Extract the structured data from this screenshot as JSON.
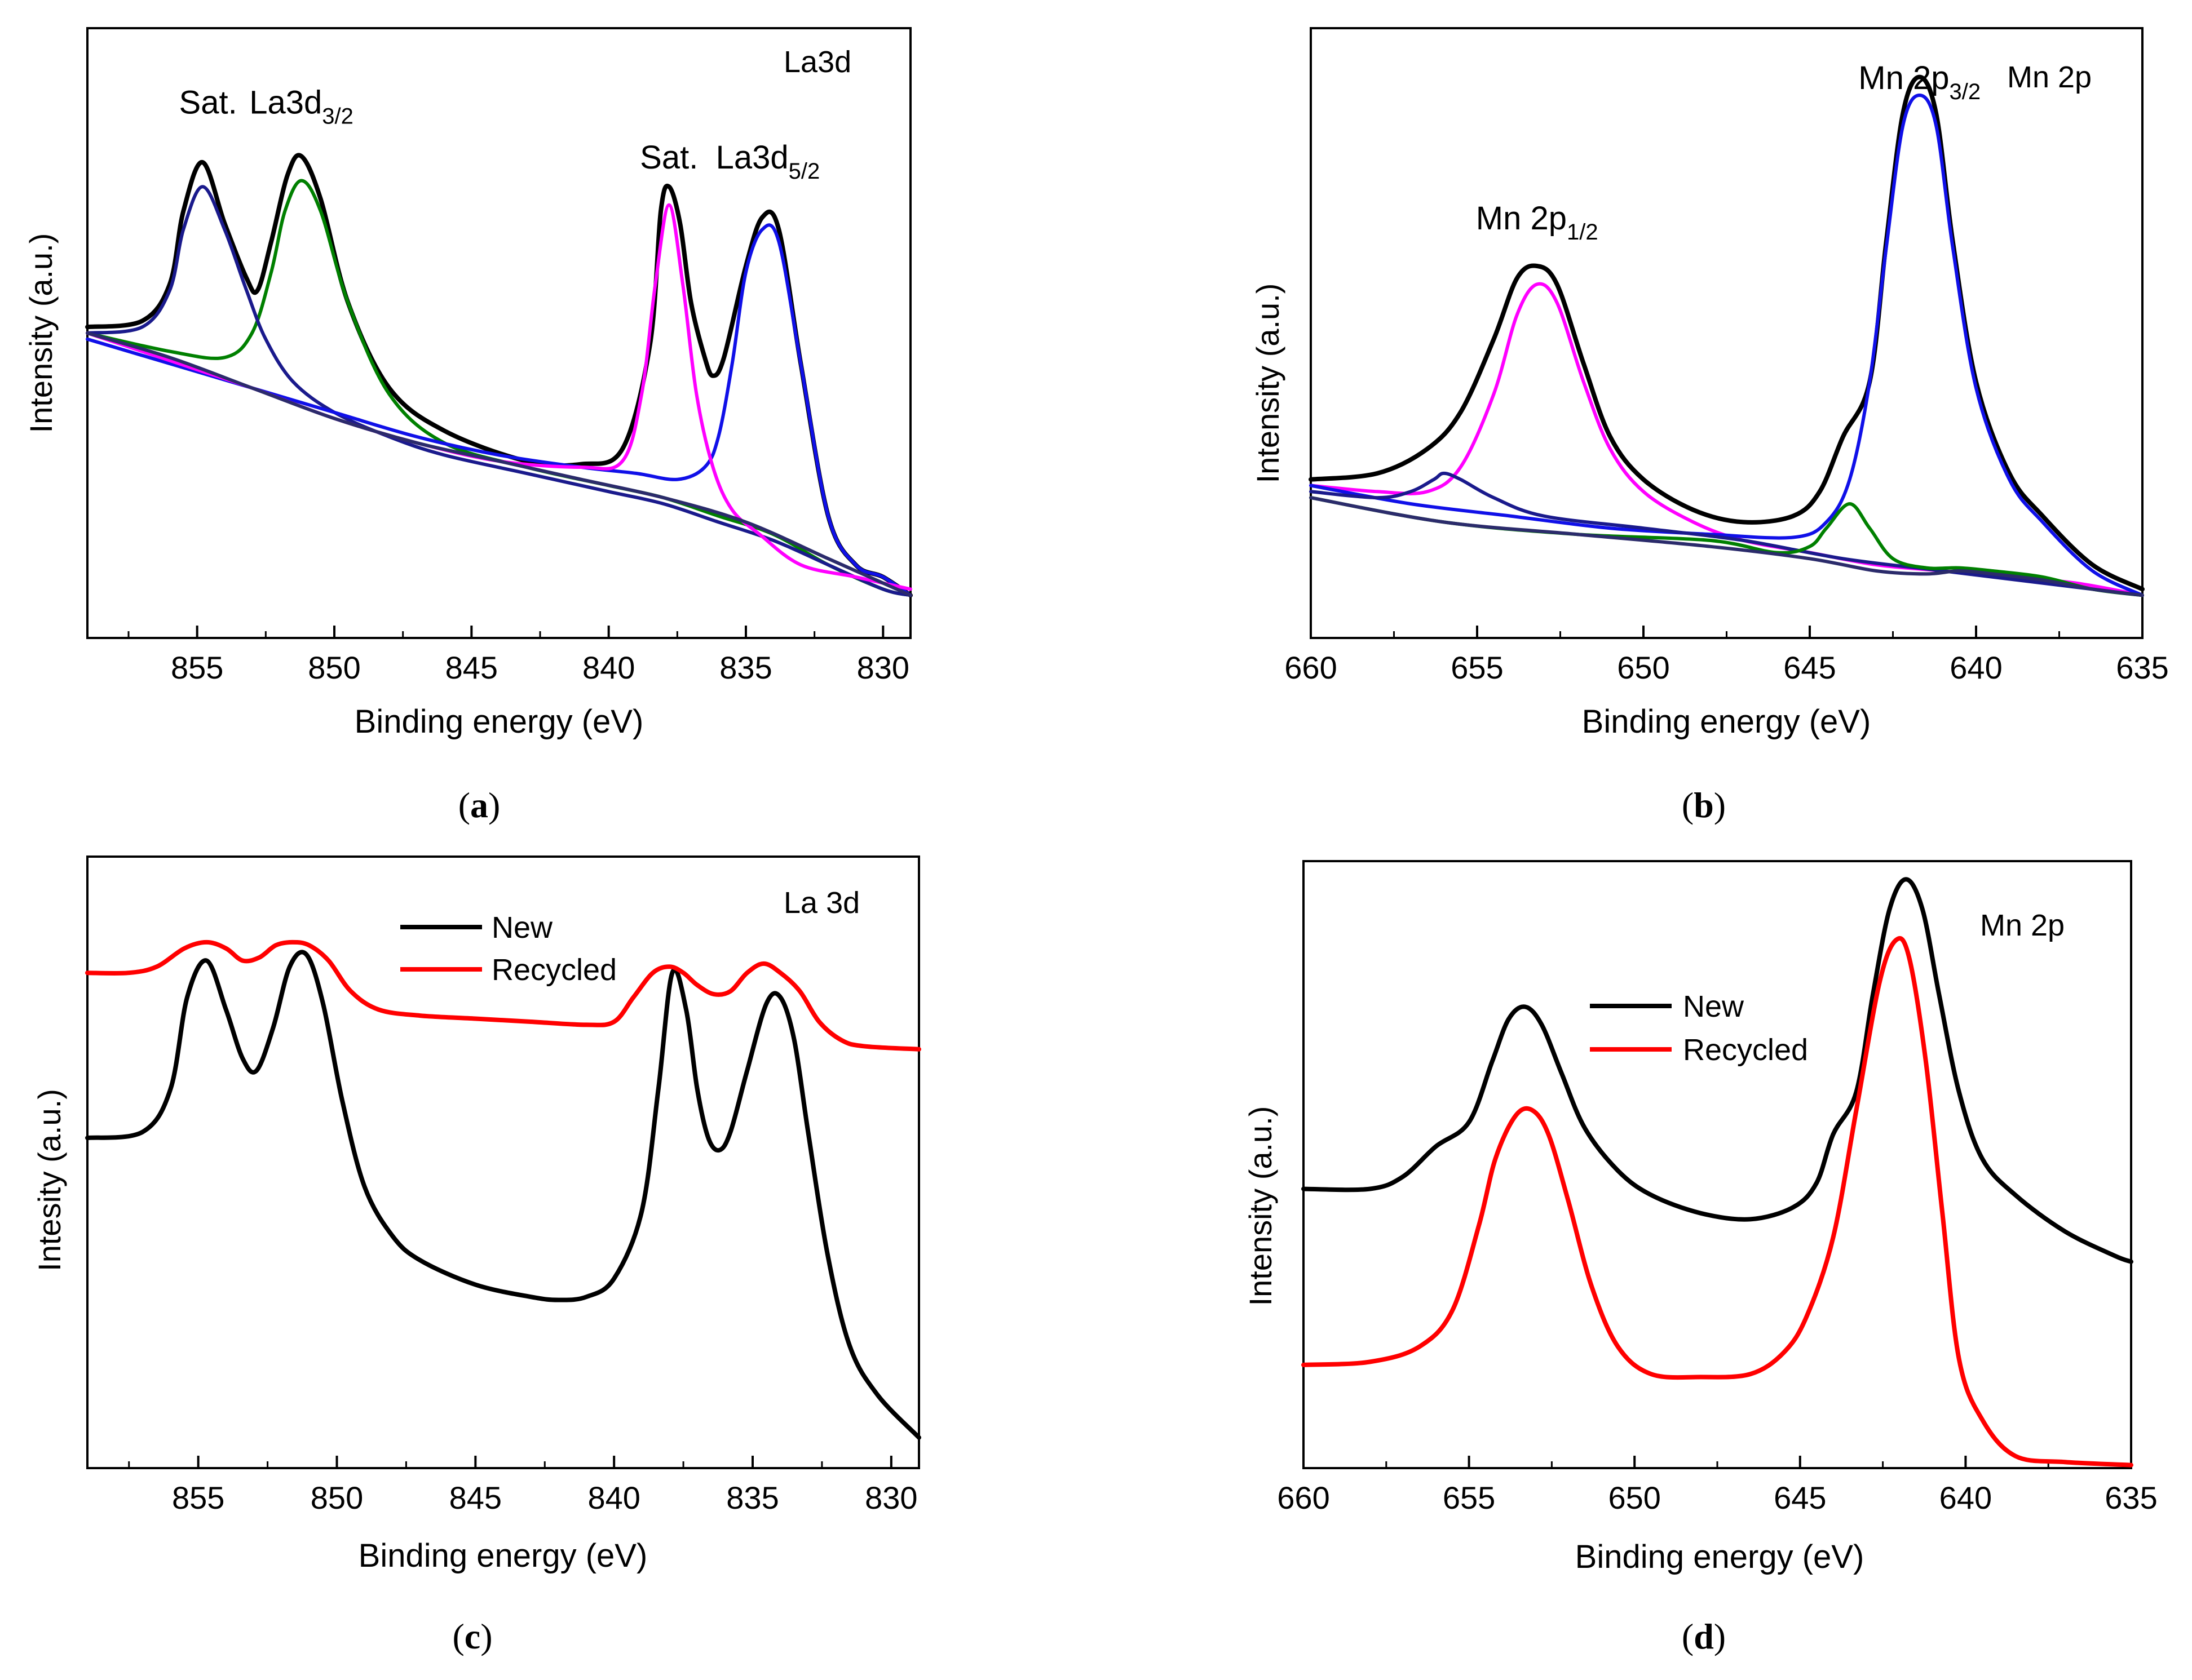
{
  "figure": {
    "panels": [
      {
        "id": "a",
        "caption_letter": "a",
        "caption_open": "(",
        "caption_close": ")"
      },
      {
        "id": "b",
        "caption_letter": "b",
        "caption_open": "(",
        "caption_close": ")"
      },
      {
        "id": "c",
        "caption_letter": "c",
        "caption_open": "(",
        "caption_close": ")"
      },
      {
        "id": "d",
        "caption_letter": "d",
        "caption_open": "(",
        "caption_close": ")"
      }
    ]
  },
  "chart_data": [
    {
      "id": "a",
      "type": "line",
      "title": "La3d",
      "xlabel": "Binding energy (eV)",
      "ylabel": "Intensity (a.u.)",
      "xlim": [
        859,
        829
      ],
      "ylim": [
        0,
        100
      ],
      "x_reversed": true,
      "y_ticks_shown": false,
      "xticks": [
        855,
        850,
        845,
        840,
        835,
        830
      ],
      "xtick_labels": [
        "855",
        "850",
        "845",
        "840",
        "835",
        "830"
      ],
      "annotations": [
        {
          "text": "Sat.",
          "x": 854.6,
          "y": 86
        },
        {
          "main": "La3d",
          "sub": "3/2",
          "x": 851.2,
          "y": 86
        },
        {
          "text": "Sat.",
          "x": 837.8,
          "y": 77
        },
        {
          "main": "La3d",
          "sub": "5/2",
          "x": 834.2,
          "y": 77
        }
      ],
      "series": [
        {
          "name": "envelope",
          "color": "#000000",
          "x": [
            859,
            857,
            856,
            855.5,
            854.8,
            854,
            853.2,
            852.8,
            852.3,
            851.7,
            851.2,
            850.5,
            849.5,
            848,
            846,
            843,
            841,
            839.5,
            838.5,
            838.1,
            837.8,
            837.4,
            837,
            836.5,
            836.2,
            835.8,
            835,
            834.4,
            833.8,
            833,
            832,
            831,
            830,
            829
          ],
          "y": [
            51,
            52,
            58,
            70,
            78,
            68,
            59,
            57,
            65,
            76,
            79,
            72,
            55,
            41,
            34,
            29,
            28.5,
            31,
            48,
            70,
            74,
            68,
            55,
            46,
            43,
            46,
            61,
            69,
            67,
            45,
            20,
            12,
            10,
            7
          ]
        },
        {
          "name": "La3d 3/2 component",
          "color": "#008000",
          "x": [
            859,
            856,
            854,
            853,
            852.3,
            851.8,
            851.2,
            850.5,
            849.5,
            848,
            846,
            843,
            840,
            838,
            836,
            834,
            832,
            830,
            829
          ],
          "y": [
            50,
            47,
            46,
            50,
            60,
            70,
            75,
            70,
            55,
            40,
            32,
            28,
            25,
            23,
            20,
            17,
            12,
            8,
            7
          ]
        },
        {
          "name": "Sat. component (854.8)",
          "color": "#1a1a8c",
          "x": [
            859,
            857,
            856,
            855.5,
            854.8,
            854,
            853.2,
            852.5,
            851.5,
            850,
            848,
            846,
            843,
            840,
            838,
            836,
            834,
            832,
            830,
            829
          ],
          "y": [
            50,
            51,
            57,
            67,
            74,
            67,
            57,
            49,
            42,
            37,
            33,
            30,
            27,
            24,
            22,
            19,
            16,
            12,
            8,
            7
          ]
        },
        {
          "name": "La3d 5/2 component",
          "color": "#1010e8",
          "x": [
            859,
            856,
            853,
            850,
            847,
            844,
            841,
            839,
            837.5,
            836.5,
            836,
            835.5,
            835,
            834.4,
            833.8,
            833,
            832,
            831,
            830,
            829
          ],
          "y": [
            49,
            45,
            41,
            37,
            33,
            30,
            28,
            27,
            26,
            28,
            33,
            45,
            60,
            67,
            65,
            45,
            20,
            12,
            10,
            7
          ]
        },
        {
          "name": "Sat. component (837.8)",
          "color": "#ff00ff",
          "x": [
            859,
            857,
            855,
            853,
            850,
            847,
            844,
            841,
            839.5,
            838.8,
            838.3,
            837.8,
            837.3,
            836.8,
            836.2,
            835.5,
            834.5,
            833,
            831,
            829
          ],
          "y": [
            50,
            47,
            44,
            41,
            36,
            32,
            29,
            28,
            29,
            40,
            58,
            71,
            58,
            40,
            28,
            21,
            17,
            12,
            10,
            8
          ]
        },
        {
          "name": "baseline",
          "color": "#2b2b6b",
          "x": [
            859,
            856,
            853,
            850,
            847,
            844,
            841,
            838,
            835,
            832,
            830,
            829
          ],
          "y": [
            50,
            46,
            41,
            36,
            32,
            29,
            26,
            23,
            19,
            13,
            9,
            7
          ]
        }
      ]
    },
    {
      "id": "b",
      "type": "line",
      "title": "Mn 2p",
      "xlabel": "Binding energy (eV)",
      "ylabel": "Intensity (a.u.)",
      "xlim": [
        660,
        635
      ],
      "ylim": [
        0,
        100
      ],
      "x_reversed": true,
      "y_ticks_shown": false,
      "xticks": [
        660,
        655,
        650,
        645,
        640,
        635
      ],
      "xtick_labels": [
        "660",
        "655",
        "650",
        "645",
        "640",
        "635"
      ],
      "annotations": [
        {
          "main": "Mn 2p",
          "sub": "1/2",
          "x": 653.2,
          "y": 67
        },
        {
          "main": "Mn 2p",
          "sub": "3/2",
          "x": 641.7,
          "y": 90
        }
      ],
      "series": [
        {
          "name": "envelope",
          "color": "#000000",
          "x": [
            660,
            658,
            656.5,
            655.5,
            654.5,
            653.8,
            653.2,
            652.6,
            651.8,
            651,
            650,
            648.5,
            647,
            645.5,
            644.7,
            644,
            643.2,
            642.7,
            642.2,
            641.7,
            641.2,
            640.7,
            640,
            639,
            638,
            636.5,
            635
          ],
          "y": [
            26,
            27,
            31,
            37,
            49,
            59,
            61,
            58,
            45,
            33,
            26,
            21,
            19,
            20,
            24,
            33,
            42,
            65,
            86,
            92,
            86,
            65,
            42,
            27,
            20,
            12,
            8
          ]
        },
        {
          "name": "Mn 2p 1/2 component",
          "color": "#ff00ff",
          "x": [
            660,
            658,
            656.5,
            655.5,
            654.5,
            653.8,
            653.2,
            652.6,
            651.8,
            651,
            650,
            648.5,
            647,
            645,
            643,
            641,
            639,
            637,
            635
          ],
          "y": [
            25,
            24,
            24,
            28,
            40,
            53,
            58,
            55,
            42,
            31,
            24,
            19,
            16,
            14,
            12,
            11,
            10,
            9,
            7
          ]
        },
        {
          "name": "Mn 2p 3/2 component",
          "color": "#1010e8",
          "x": [
            660,
            657,
            654,
            651,
            648,
            645.5,
            644.5,
            643.8,
            643.2,
            642.7,
            642.2,
            641.7,
            641.2,
            640.7,
            640,
            639,
            638,
            636.5,
            635
          ],
          "y": [
            25,
            22,
            20,
            18,
            17,
            16.5,
            19,
            26,
            42,
            64,
            84,
            89,
            84,
            64,
            41,
            26,
            19,
            11,
            7
          ]
        },
        {
          "name": "satellite component (656)",
          "color": "#1a1a8c",
          "x": [
            660,
            658,
            657,
            656.3,
            656,
            655.5,
            654.5,
            653,
            650,
            647,
            644,
            641,
            638,
            635
          ],
          "y": [
            24,
            23,
            24,
            26,
            27,
            26,
            23,
            20,
            18,
            16,
            13,
            11,
            9,
            7
          ]
        },
        {
          "name": "satellite component (643.8)",
          "color": "#008000",
          "x": [
            660,
            656,
            652,
            648,
            646,
            645,
            644.5,
            643.8,
            643.2,
            642.5,
            641.5,
            640.5,
            639.5,
            638,
            636.5,
            635
          ],
          "y": [
            23,
            19,
            17,
            16,
            14,
            15,
            18,
            22,
            18,
            13,
            11.5,
            11.5,
            11,
            10,
            8,
            7
          ]
        },
        {
          "name": "baseline",
          "color": "#2b2b6b",
          "x": [
            660,
            656,
            652,
            648,
            645,
            643,
            641.5,
            640.5,
            639.5,
            638,
            636.5,
            635
          ],
          "y": [
            23,
            19,
            17,
            15,
            13,
            11,
            10.5,
            11,
            10.5,
            9.5,
            8,
            7
          ]
        }
      ]
    },
    {
      "id": "c",
      "type": "line",
      "title": "La 3d",
      "xlabel": "Binding energy (eV)",
      "ylabel": "Intesity (a.u.)",
      "xlim": [
        859,
        829
      ],
      "ylim": [
        0,
        100
      ],
      "x_reversed": true,
      "y_ticks_shown": false,
      "xticks": [
        855,
        850,
        845,
        840,
        835,
        830
      ],
      "xtick_labels": [
        "855",
        "850",
        "845",
        "840",
        "835",
        "830"
      ],
      "legend": {
        "position": "top-center",
        "entries": [
          "New",
          "Recycled"
        ]
      },
      "series": [
        {
          "name": "New",
          "color": "#000000",
          "x": [
            859,
            857,
            856,
            855.4,
            854.7,
            854,
            853.4,
            852.9,
            852.3,
            851.7,
            851.1,
            850.5,
            849.8,
            849,
            848,
            847,
            845,
            843,
            842,
            841,
            840,
            839,
            838.4,
            837.9,
            837.4,
            837,
            836.6,
            836.2,
            835.8,
            835.2,
            834.5,
            834,
            833.5,
            833,
            832.3,
            831.5,
            830.5,
            829
          ],
          "y": [
            54,
            55,
            62,
            77,
            83,
            75,
            67,
            65,
            72,
            82,
            84,
            76,
            60,
            46,
            38,
            34,
            30,
            28,
            27.5,
            28,
            31,
            42,
            62,
            81,
            75,
            62,
            54,
            52,
            55,
            65,
            76,
            77,
            70,
            55,
            35,
            20,
            12,
            5
          ]
        },
        {
          "name": "Recycled",
          "color": "#ff0000",
          "x": [
            859,
            857.5,
            856.5,
            855.5,
            854.7,
            854,
            853.4,
            852.8,
            852.2,
            851.6,
            851,
            850.3,
            849.5,
            848.5,
            847,
            845,
            843,
            841,
            840,
            839.3,
            838.6,
            838,
            837.5,
            837,
            836.4,
            835.8,
            835.2,
            834.6,
            834,
            833.3,
            832.6,
            831.8,
            831,
            829
          ],
          "y": [
            81,
            81,
            82,
            85,
            86,
            85,
            83,
            83.5,
            85.5,
            86,
            85.5,
            83,
            78,
            75,
            74,
            73.5,
            73,
            72.5,
            73,
            77,
            81,
            82,
            81,
            79,
            77.5,
            78,
            81,
            82.5,
            81,
            78,
            73,
            70,
            69,
            68.5
          ]
        }
      ]
    },
    {
      "id": "d",
      "type": "line",
      "title": "Mn 2p",
      "xlabel": "Binding energy (eV)",
      "ylabel": "Intensity (a.u.)",
      "xlim": [
        660,
        635
      ],
      "ylim": [
        0,
        100
      ],
      "x_reversed": true,
      "y_ticks_shown": false,
      "xticks": [
        660,
        655,
        650,
        645,
        640,
        635
      ],
      "xtick_labels": [
        "660",
        "655",
        "650",
        "645",
        "640",
        "635"
      ],
      "legend": {
        "position": "top-center",
        "entries": [
          "New",
          "Recycled"
        ]
      },
      "series": [
        {
          "name": "New",
          "color": "#000000",
          "x": [
            660,
            658,
            657,
            656,
            655,
            654.3,
            653.8,
            653.3,
            652.8,
            652.2,
            651.5,
            650.5,
            649.5,
            648,
            646.5,
            645.2,
            644.5,
            644,
            643.3,
            642.8,
            642.3,
            641.8,
            641.3,
            640.8,
            640.2,
            639.5,
            638.5,
            637,
            635.5,
            635
          ],
          "y": [
            46,
            46,
            48,
            53,
            57,
            67,
            74,
            76,
            73,
            65,
            56,
            49,
            45,
            42,
            41,
            43,
            47,
            55,
            62,
            78,
            92,
            97,
            92,
            78,
            62,
            51,
            45,
            39,
            35,
            34
          ]
        },
        {
          "name": "Recycled",
          "color": "#ff0000",
          "x": [
            660,
            658,
            656.5,
            655.5,
            654.7,
            654.2,
            653.6,
            653.1,
            652.6,
            652,
            651.3,
            650.5,
            649.5,
            648,
            646.5,
            645.5,
            644.8,
            644,
            643.3,
            642.6,
            642.1,
            641.7,
            641.2,
            640.7,
            640.2,
            639.5,
            638.5,
            637,
            635
          ],
          "y": [
            17,
            17.5,
            20,
            26,
            40,
            51,
            58,
            59,
            55,
            44,
            30,
            20,
            15.5,
            15,
            15.5,
            19,
            25,
            38,
            59,
            80,
            87,
            84,
            67,
            42,
            18,
            8,
            2,
            1,
            0.5
          ]
        }
      ]
    }
  ]
}
